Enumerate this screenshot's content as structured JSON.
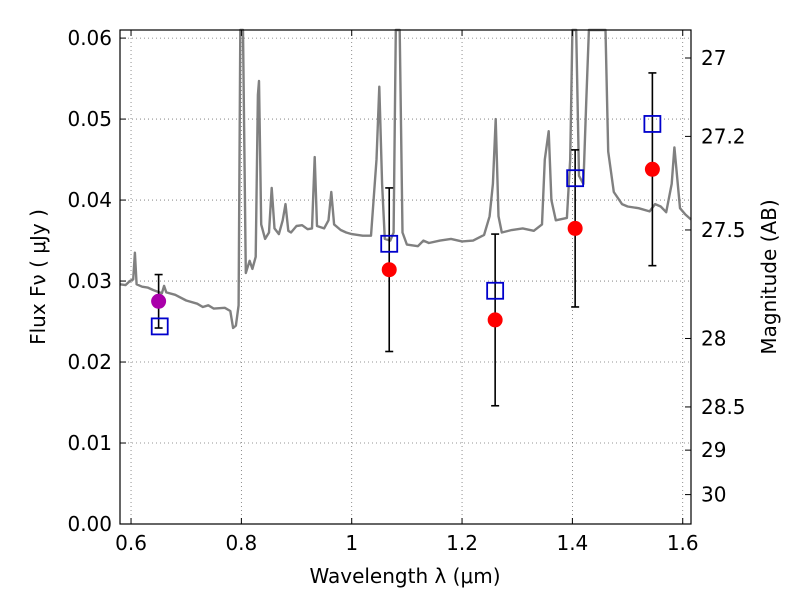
{
  "chart_data": {
    "type": "scatter",
    "xlabel": "Wavelength  λ (μm)",
    "ylabel_left": "Flux  Fν  ( μJy )",
    "ylabel_right": "Magnitude (AB)",
    "xlim": [
      0.58,
      1.615
    ],
    "ylim": [
      0.0,
      0.061
    ],
    "grid": true,
    "x_ticks": [
      "0.6",
      "0.8",
      "1",
      "1.2",
      "1.4",
      "1.6"
    ],
    "y_ticks": [
      "0.00",
      "0.01",
      "0.02",
      "0.03",
      "0.04",
      "0.05",
      "0.06"
    ],
    "right_ticks": [
      "27",
      "27.2",
      "27.5",
      "28",
      "28.5",
      "29",
      "30"
    ],
    "colors": {
      "spectrum": "#808080",
      "observed": "#ff0000",
      "observed_first": "#aa00aa",
      "model": "#0000cc",
      "errorbar": "#000000"
    },
    "observed": [
      {
        "x": 0.65,
        "y": 0.0275,
        "err": 0.0033
      },
      {
        "x": 1.068,
        "y": 0.0314,
        "err": 0.0101
      },
      {
        "x": 1.26,
        "y": 0.0252,
        "err": 0.0106
      },
      {
        "x": 1.405,
        "y": 0.0365,
        "err": 0.0097
      },
      {
        "x": 1.545,
        "y": 0.0438,
        "err": 0.0119
      }
    ],
    "model": [
      {
        "x": 0.652,
        "y": 0.0244
      },
      {
        "x": 1.068,
        "y": 0.0346
      },
      {
        "x": 1.26,
        "y": 0.0288
      },
      {
        "x": 1.405,
        "y": 0.0427
      },
      {
        "x": 1.545,
        "y": 0.0494
      }
    ],
    "spectrum": [
      [
        0.58,
        0.0296
      ],
      [
        0.59,
        0.0295
      ],
      [
        0.598,
        0.03
      ],
      [
        0.604,
        0.0302
      ],
      [
        0.607,
        0.0335
      ],
      [
        0.61,
        0.0296
      ],
      [
        0.62,
        0.0293
      ],
      [
        0.63,
        0.0292
      ],
      [
        0.64,
        0.0289
      ],
      [
        0.656,
        0.0285
      ],
      [
        0.66,
        0.0294
      ],
      [
        0.664,
        0.0286
      ],
      [
        0.68,
        0.0283
      ],
      [
        0.7,
        0.0276
      ],
      [
        0.72,
        0.0272
      ],
      [
        0.73,
        0.0268
      ],
      [
        0.74,
        0.027
      ],
      [
        0.75,
        0.0266
      ],
      [
        0.77,
        0.0267
      ],
      [
        0.78,
        0.0263
      ],
      [
        0.785,
        0.0242
      ],
      [
        0.79,
        0.0245
      ],
      [
        0.795,
        0.027
      ],
      [
        0.798,
        0.062
      ],
      [
        0.803,
        0.062
      ],
      [
        0.808,
        0.031
      ],
      [
        0.815,
        0.0325
      ],
      [
        0.82,
        0.0315
      ],
      [
        0.826,
        0.033
      ],
      [
        0.83,
        0.053
      ],
      [
        0.832,
        0.0547
      ],
      [
        0.836,
        0.037
      ],
      [
        0.843,
        0.0352
      ],
      [
        0.85,
        0.036
      ],
      [
        0.855,
        0.0415
      ],
      [
        0.86,
        0.0365
      ],
      [
        0.868,
        0.0358
      ],
      [
        0.875,
        0.0375
      ],
      [
        0.88,
        0.0395
      ],
      [
        0.885,
        0.0362
      ],
      [
        0.89,
        0.036
      ],
      [
        0.9,
        0.0368
      ],
      [
        0.91,
        0.0369
      ],
      [
        0.92,
        0.0364
      ],
      [
        0.928,
        0.0365
      ],
      [
        0.933,
        0.0453
      ],
      [
        0.937,
        0.0368
      ],
      [
        0.95,
        0.0365
      ],
      [
        0.958,
        0.0375
      ],
      [
        0.963,
        0.041
      ],
      [
        0.968,
        0.037
      ],
      [
        0.98,
        0.0363
      ],
      [
        0.99,
        0.036
      ],
      [
        1.0,
        0.0358
      ],
      [
        1.02,
        0.0356
      ],
      [
        1.035,
        0.0356
      ],
      [
        1.045,
        0.045
      ],
      [
        1.05,
        0.054
      ],
      [
        1.055,
        0.042
      ],
      [
        1.06,
        0.0352
      ],
      [
        1.07,
        0.035
      ],
      [
        1.076,
        0.036
      ],
      [
        1.08,
        0.062
      ],
      [
        1.087,
        0.062
      ],
      [
        1.092,
        0.036
      ],
      [
        1.1,
        0.0345
      ],
      [
        1.12,
        0.0343
      ],
      [
        1.13,
        0.035
      ],
      [
        1.14,
        0.0347
      ],
      [
        1.16,
        0.035
      ],
      [
        1.18,
        0.0352
      ],
      [
        1.2,
        0.0349
      ],
      [
        1.22,
        0.035
      ],
      [
        1.24,
        0.0357
      ],
      [
        1.25,
        0.038
      ],
      [
        1.256,
        0.042
      ],
      [
        1.261,
        0.05
      ],
      [
        1.266,
        0.038
      ],
      [
        1.272,
        0.036
      ],
      [
        1.29,
        0.0363
      ],
      [
        1.31,
        0.0365
      ],
      [
        1.33,
        0.0362
      ],
      [
        1.345,
        0.037
      ],
      [
        1.35,
        0.045
      ],
      [
        1.357,
        0.0485
      ],
      [
        1.362,
        0.04
      ],
      [
        1.37,
        0.0375
      ],
      [
        1.39,
        0.0378
      ],
      [
        1.396,
        0.045
      ],
      [
        1.4,
        0.062
      ],
      [
        1.407,
        0.062
      ],
      [
        1.412,
        0.043
      ],
      [
        1.42,
        0.042
      ],
      [
        1.425,
        0.052
      ],
      [
        1.43,
        0.062
      ],
      [
        1.44,
        0.062
      ],
      [
        1.45,
        0.062
      ],
      [
        1.46,
        0.062
      ],
      [
        1.465,
        0.046
      ],
      [
        1.475,
        0.041
      ],
      [
        1.49,
        0.0395
      ],
      [
        1.5,
        0.0392
      ],
      [
        1.52,
        0.039
      ],
      [
        1.54,
        0.0386
      ],
      [
        1.55,
        0.0395
      ],
      [
        1.56,
        0.0392
      ],
      [
        1.57,
        0.0385
      ],
      [
        1.58,
        0.042
      ],
      [
        1.585,
        0.0465
      ],
      [
        1.595,
        0.039
      ],
      [
        1.605,
        0.0382
      ],
      [
        1.615,
        0.0376
      ]
    ]
  }
}
